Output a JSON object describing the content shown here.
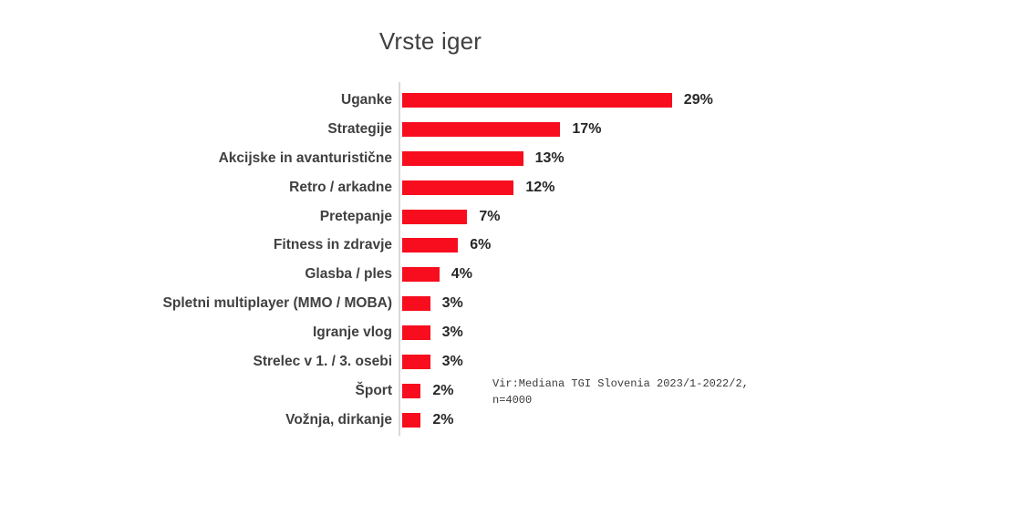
{
  "title": "Vrste iger",
  "chart_data": {
    "type": "bar",
    "orientation": "horizontal",
    "title": "Vrste iger",
    "categories": [
      "Uganke",
      "Strategije",
      "Akcijske in avanturistične",
      "Retro / arkadne",
      "Pretepanje",
      "Fitness in zdravje",
      "Glasba / ples",
      "Spletni multiplayer (MMO / MOBA)",
      "Igranje vlog",
      "Strelec v 1. / 3. osebi",
      "Šport",
      "Vožnja, dirkanje"
    ],
    "values": [
      29,
      17,
      13,
      12,
      7,
      6,
      4,
      3,
      3,
      3,
      2,
      2
    ],
    "unit": "%",
    "xlabel": "",
    "ylabel": "",
    "xlim": [
      0,
      30
    ],
    "grid": false,
    "legend_position": "none",
    "data_labels": true
  },
  "source_note": {
    "line1": "Vir:Mediana TGI Slovenia 2023/1-2022/2,",
    "line2": "n=4000"
  },
  "colors": {
    "bar": "#f70d1e",
    "axis": "#d9d9d9",
    "title_text": "#404040",
    "category_text": "#404040",
    "value_text": "#262626",
    "background": "#ffffff"
  }
}
